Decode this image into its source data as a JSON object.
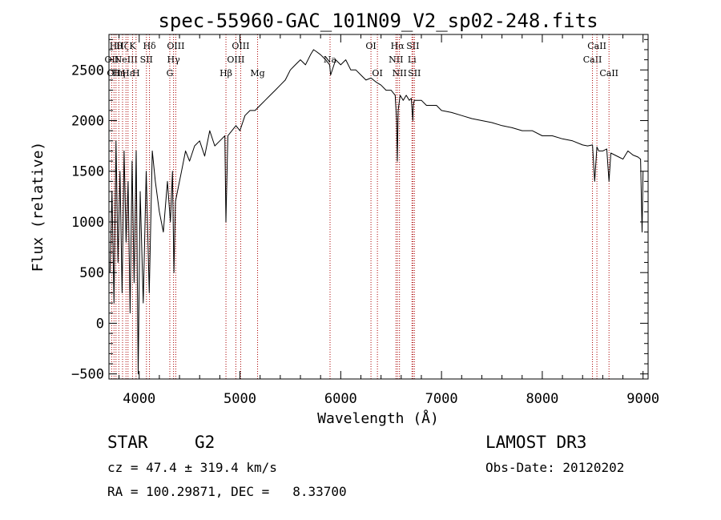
{
  "chart_data": {
    "type": "line",
    "title": "spec-55960-GAC_101N09_V2_sp02-248.fits",
    "xlabel": "Wavelength (Å)",
    "ylabel": "Flux (relative)",
    "xlim": [
      3700,
      9050
    ],
    "ylim": [
      -550,
      2850
    ],
    "xticks": [
      4000,
      5000,
      6000,
      7000,
      8000,
      9000
    ],
    "xtick_labels": [
      "4000",
      "5000",
      "6000",
      "7000",
      "8000",
      "9000"
    ],
    "yticks": [
      -500,
      0,
      500,
      1000,
      1500,
      2000,
      2500
    ],
    "ytick_labels": [
      "−500",
      "0",
      "500",
      "1000",
      "1500",
      "2000",
      "2500"
    ],
    "grid": false,
    "color": "#000000",
    "line_color": "#aa0000",
    "series": [
      {
        "name": "flux",
        "x": [
          3710,
          3730,
          3750,
          3770,
          3790,
          3810,
          3830,
          3850,
          3870,
          3890,
          3910,
          3930,
          3950,
          3970,
          3990,
          4010,
          4040,
          4070,
          4100,
          4130,
          4160,
          4200,
          4240,
          4280,
          4310,
          4330,
          4345,
          4360,
          4380,
          4420,
          4460,
          4500,
          4550,
          4600,
          4650,
          4700,
          4750,
          4800,
          4850,
          4861,
          4880,
          4920,
          4960,
          5000,
          5050,
          5100,
          5150,
          5200,
          5250,
          5300,
          5350,
          5400,
          5450,
          5500,
          5550,
          5600,
          5650,
          5700,
          5730,
          5760,
          5800,
          5850,
          5890,
          5900,
          5950,
          6000,
          6050,
          6100,
          6150,
          6200,
          6250,
          6300,
          6350,
          6400,
          6450,
          6500,
          6540,
          6555,
          6562,
          6570,
          6590,
          6620,
          6650,
          6680,
          6700,
          6715,
          6720,
          6730,
          6760,
          6800,
          6850,
          6900,
          6950,
          7000,
          7100,
          7200,
          7300,
          7400,
          7500,
          7600,
          7700,
          7800,
          7900,
          8000,
          8100,
          8200,
          8300,
          8400,
          8450,
          8498,
          8520,
          8542,
          8560,
          8600,
          8640,
          8662,
          8680,
          8720,
          8760,
          8800,
          8850,
          8900,
          8950,
          8975,
          8990,
          9000
        ],
        "values": [
          500,
          1300,
          200,
          1800,
          600,
          1500,
          300,
          1700,
          800,
          1400,
          100,
          1600,
          400,
          1700,
          -500,
          1300,
          200,
          1500,
          300,
          1700,
          1400,
          1100,
          900,
          1400,
          1000,
          1500,
          500,
          1200,
          1300,
          1500,
          1700,
          1600,
          1750,
          1800,
          1650,
          1900,
          1750,
          1800,
          1850,
          1000,
          1850,
          1900,
          1950,
          1900,
          2050,
          2100,
          2100,
          2150,
          2200,
          2250,
          2300,
          2350,
          2400,
          2500,
          2550,
          2600,
          2550,
          2650,
          2700,
          2680,
          2650,
          2600,
          2550,
          2450,
          2600,
          2550,
          2600,
          2500,
          2500,
          2450,
          2400,
          2420,
          2380,
          2350,
          2300,
          2300,
          2250,
          2000,
          1600,
          2100,
          2250,
          2200,
          2250,
          2200,
          2220,
          2000,
          2150,
          2200,
          2200,
          2200,
          2150,
          2150,
          2150,
          2100,
          2080,
          2050,
          2020,
          2000,
          1980,
          1950,
          1930,
          1900,
          1900,
          1850,
          1850,
          1820,
          1800,
          1760,
          1750,
          1760,
          1400,
          1740,
          1700,
          1700,
          1720,
          1400,
          1680,
          1660,
          1640,
          1620,
          1700,
          1660,
          1640,
          1620,
          900,
          1500
        ]
      }
    ],
    "line_markers": [
      {
        "x": 3727,
        "label": "OII",
        "row": 1
      },
      {
        "x": 3750,
        "label": "OII",
        "row": 2
      },
      {
        "x": 3770,
        "label": "Hθ",
        "row": 0
      },
      {
        "x": 3798,
        "label": "Hη",
        "row": 2
      },
      {
        "x": 3835,
        "label": "Hζ",
        "row": 0
      },
      {
        "x": 3869,
        "label": "NeIII",
        "row": 1
      },
      {
        "x": 3889,
        "label": "Hε",
        "row": 2
      },
      {
        "x": 3934,
        "label": "K",
        "row": 0
      },
      {
        "x": 3969,
        "label": "H",
        "row": 2
      },
      {
        "x": 4072,
        "label": "SII",
        "row": 1
      },
      {
        "x": 4102,
        "label": "Hδ",
        "row": 0
      },
      {
        "x": 4304,
        "label": "G",
        "row": 2
      },
      {
        "x": 4341,
        "label": "Hγ",
        "row": 1
      },
      {
        "x": 4363,
        "label": "OIII",
        "row": 0
      },
      {
        "x": 4861,
        "label": "Hβ",
        "row": 2
      },
      {
        "x": 4959,
        "label": "OIII",
        "row": 1
      },
      {
        "x": 5007,
        "label": "OIII",
        "row": 0
      },
      {
        "x": 5175,
        "label": "Mg",
        "row": 2
      },
      {
        "x": 5894,
        "label": "Na",
        "row": 1
      },
      {
        "x": 6300,
        "label": "OI",
        "row": 0
      },
      {
        "x": 6364,
        "label": "OI",
        "row": 2
      },
      {
        "x": 6548,
        "label": "NII",
        "row": 1
      },
      {
        "x": 6563,
        "label": "Hα",
        "row": 0
      },
      {
        "x": 6583,
        "label": "NII",
        "row": 2
      },
      {
        "x": 6707,
        "label": "Li",
        "row": 1
      },
      {
        "x": 6716,
        "label": "SII",
        "row": 0
      },
      {
        "x": 6731,
        "label": "SII",
        "row": 2
      },
      {
        "x": 8498,
        "label": "CaII",
        "row": 1
      },
      {
        "x": 8542,
        "label": "CaII",
        "row": 0
      },
      {
        "x": 8662,
        "label": "CaII",
        "row": 2
      }
    ]
  },
  "info": {
    "object_class": "STAR",
    "subclass": "G2",
    "survey": "LAMOST DR3",
    "cz": "cz = 47.4 ± 319.4 km/s",
    "obs_date": "Obs-Date: 20120202",
    "coords": "RA = 100.29871, DEC =   8.33700"
  }
}
